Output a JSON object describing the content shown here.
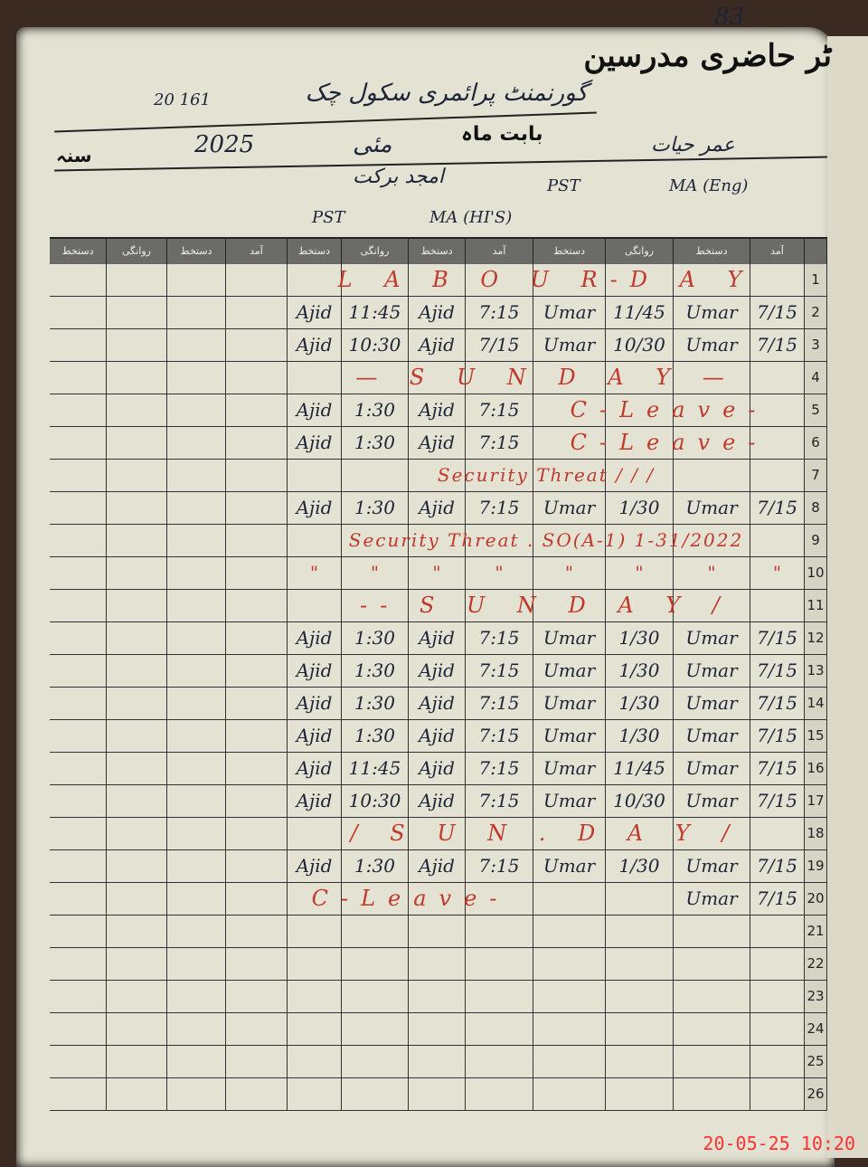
{
  "header": {
    "page_number": "83",
    "register_title": "ٹر حاضری مدرسین",
    "school_name": "گورنمنٹ پرائمری سکول چک",
    "school_code": "20 161",
    "month_label": "بابت ماہ",
    "month_value": "مئی",
    "year_label": "سنہ",
    "year_value": "2025"
  },
  "teachers": [
    {
      "name": "امجد برکت",
      "designation": "PST",
      "qualification": "MA (HI'S)"
    },
    {
      "name": "عمر حیات",
      "designation": "PST",
      "qualification": "MA (Eng)"
    }
  ],
  "column_headers": [
    "دستخط",
    "روانگی",
    "دستخط",
    "آمد"
  ],
  "rows": [
    {
      "n": "1",
      "note": {
        "text": "L A B O U R-D A Y",
        "scope": "both"
      }
    },
    {
      "n": "2",
      "cells": [
        "Ajid",
        "11:45",
        "Ajid",
        "7:15",
        "Umar",
        "11/45",
        "Umar",
        "7/15"
      ]
    },
    {
      "n": "3",
      "cells": [
        "Ajid",
        "10:30",
        "Ajid",
        "7/15",
        "Umar",
        "10/30",
        "Umar",
        "7/15"
      ]
    },
    {
      "n": "4",
      "note": {
        "text": "— S U N D A Y —",
        "scope": "both"
      }
    },
    {
      "n": "5",
      "cells": [
        "Ajid",
        "1:30",
        "Ajid",
        "7:15",
        "",
        "",
        "",
        ""
      ],
      "note": {
        "text": "C-Leave-",
        "scope": "right"
      }
    },
    {
      "n": "6",
      "cells": [
        "Ajid",
        "1:30",
        "Ajid",
        "7:15",
        "",
        "",
        "",
        ""
      ],
      "note": {
        "text": "C-Leave-",
        "scope": "right"
      }
    },
    {
      "n": "7",
      "note": {
        "text": "Security Threat  /  /  /",
        "scope": "both"
      }
    },
    {
      "n": "8",
      "cells": [
        "Ajid",
        "1:30",
        "Ajid",
        "7:15",
        "Umar",
        "1/30",
        "Umar",
        "7/15"
      ]
    },
    {
      "n": "9",
      "note": {
        "text": "Security Threat . SO(A-1) 1-31/2022",
        "scope": "both"
      }
    },
    {
      "n": "10",
      "cells": [
        "\"",
        "\"",
        "\"",
        "\"",
        "\"",
        "\"",
        "\"",
        "\""
      ],
      "red": true
    },
    {
      "n": "11",
      "note": {
        "text": "-- S U N D A Y /",
        "scope": "both"
      }
    },
    {
      "n": "12",
      "cells": [
        "Ajid",
        "1:30",
        "Ajid",
        "7:15",
        "Umar",
        "1/30",
        "Umar",
        "7/15"
      ]
    },
    {
      "n": "13",
      "cells": [
        "Ajid",
        "1:30",
        "Ajid",
        "7:15",
        "Umar",
        "1/30",
        "Umar",
        "7/15"
      ]
    },
    {
      "n": "14",
      "cells": [
        "Ajid",
        "1:30",
        "Ajid",
        "7:15",
        "Umar",
        "1/30",
        "Umar",
        "7/15"
      ]
    },
    {
      "n": "15",
      "cells": [
        "Ajid",
        "1:30",
        "Ajid",
        "7:15",
        "Umar",
        "1/30",
        "Umar",
        "7/15"
      ]
    },
    {
      "n": "16",
      "cells": [
        "Ajid",
        "11:45",
        "Ajid",
        "7:15",
        "Umar",
        "11/45",
        "Umar",
        "7/15"
      ]
    },
    {
      "n": "17",
      "cells": [
        "Ajid",
        "10:30",
        "Ajid",
        "7:15",
        "Umar",
        "10/30",
        "Umar",
        "7/15"
      ]
    },
    {
      "n": "18",
      "note": {
        "text": "/ S U N . D A Y /",
        "scope": "both"
      }
    },
    {
      "n": "19",
      "cells": [
        "Ajid",
        "1:30",
        "Ajid",
        "7:15",
        "Umar",
        "1/30",
        "Umar",
        "7/15"
      ]
    },
    {
      "n": "20",
      "cells": [
        "",
        "",
        "",
        "",
        "",
        "",
        "Umar",
        "7/15"
      ],
      "note": {
        "text": "C-Leave-",
        "scope": "left"
      }
    },
    {
      "n": "21"
    },
    {
      "n": "22"
    },
    {
      "n": "23"
    },
    {
      "n": "24"
    },
    {
      "n": "25"
    },
    {
      "n": "26"
    }
  ],
  "camera_timestamp": "20-05-25  10:20",
  "colors": {
    "ink": "#1d2438",
    "red_ink": "#c0392b",
    "header_band": "#6b6b68",
    "paper": "#e4e2d2"
  }
}
